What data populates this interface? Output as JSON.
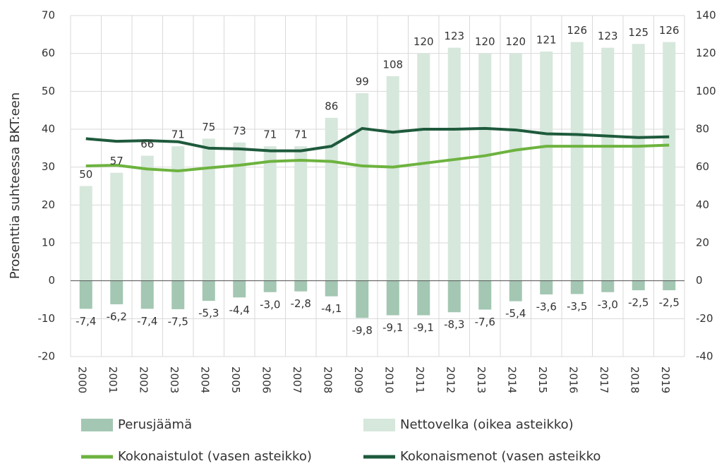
{
  "chart_data": {
    "type": "bar",
    "y_label": "Prosenttia suhteessa BKT:een",
    "categories": [
      "2000",
      "2001",
      "2002",
      "2003",
      "2004",
      "2005",
      "2006",
      "2007",
      "2008",
      "2009",
      "2010",
      "2011",
      "2012",
      "2013",
      "2014",
      "2015",
      "2016",
      "2017",
      "2018",
      "2019"
    ],
    "ylim": [
      -20,
      70
    ],
    "yticks": [
      -20,
      -10,
      0,
      10,
      20,
      30,
      40,
      50,
      60,
      70
    ],
    "y2lim": [
      -40,
      140
    ],
    "y2ticks": [
      -40,
      -20,
      0,
      20,
      40,
      60,
      80,
      100,
      120,
      140
    ],
    "grid": true,
    "series": [
      {
        "name": "Perusjäämä",
        "type": "bar",
        "color": "#a3c7b2",
        "values": [
          -7.4,
          -6.2,
          -7.4,
          -7.5,
          -5.3,
          -4.4,
          -3.0,
          -2.8,
          -4.1,
          -9.8,
          -9.1,
          -9.1,
          -8.3,
          -7.6,
          -5.4,
          -3.6,
          -3.5,
          -3.0,
          -2.5,
          -2.5
        ],
        "value_labels": [
          "-7,4",
          "-6,2",
          "-7,4",
          "-7,5",
          "-5,3",
          "-4,4",
          "-3,0",
          "-2,8",
          "-4,1",
          "-9,8",
          "-9,1",
          "-9,1",
          "-8,3",
          "-7,6",
          "-5,4",
          "-3,6",
          "-3,5",
          "-3,0",
          "-2,5",
          "-2,5"
        ]
      },
      {
        "name": "Nettovelka (oikea asteikko)",
        "type": "bar",
        "axis": "y2",
        "color": "#d6e7dc",
        "values": [
          50,
          57,
          66,
          71,
          75,
          73,
          71,
          71,
          86,
          99,
          108,
          120,
          123,
          120,
          120,
          121,
          126,
          123,
          125,
          126
        ]
      },
      {
        "name": "Kokonaistulot (vasen asteikko)",
        "type": "line",
        "color": "#6db33f",
        "values": [
          30.3,
          30.5,
          29.5,
          29.0,
          29.8,
          30.5,
          31.5,
          31.8,
          31.5,
          30.3,
          30.0,
          31.0,
          32.0,
          33.0,
          34.5,
          35.5,
          35.5,
          35.5,
          35.5,
          35.8
        ]
      },
      {
        "name": "Kokonaismenot (vasen asteikko",
        "type": "line",
        "color": "#1e5a3c",
        "values": [
          37.5,
          36.8,
          37.0,
          36.7,
          35.0,
          34.8,
          34.3,
          34.3,
          35.5,
          40.2,
          39.2,
          40.0,
          40.0,
          40.2,
          39.8,
          38.8,
          38.6,
          38.2,
          37.8,
          38.0
        ]
      }
    ]
  }
}
